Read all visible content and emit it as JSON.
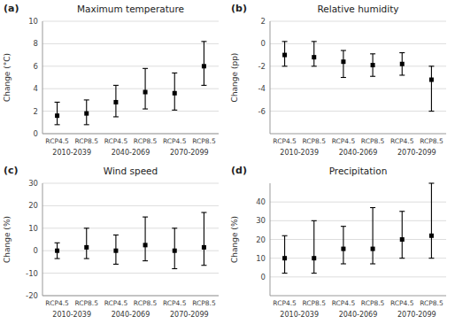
{
  "chart_data": [
    {
      "type": "errorbar",
      "label": "(a)",
      "title": "Maximum temperature",
      "ylabel": "Change (°C)",
      "categories": [
        "2010-2039",
        "2040-2069",
        "2070-2099"
      ],
      "ylim": [
        0,
        10
      ],
      "yticks": [
        0,
        2,
        4,
        6,
        8,
        10
      ],
      "grid": true,
      "series": [
        {
          "name": "RCP4.5",
          "color": "black",
          "marker": "square",
          "values": [
            1.6,
            2.8,
            3.6
          ],
          "errors_low": [
            0.8,
            1.3,
            1.5
          ],
          "errors_high": [
            1.2,
            1.5,
            1.8
          ]
        },
        {
          "name": "RCP8.5",
          "color": "black",
          "marker": "square",
          "values": [
            1.8,
            3.7,
            6.0
          ],
          "errors_low": [
            1.0,
            1.5,
            1.7
          ],
          "errors_high": [
            1.2,
            2.1,
            2.2
          ]
        }
      ]
    },
    {
      "type": "errorbar",
      "label": "(b)",
      "title": "Relative humidity",
      "ylabel": "Change (pp)",
      "categories": [
        "2010-2039",
        "2040-2069",
        "2070-2099"
      ],
      "ylim": [
        -8,
        2
      ],
      "yticks": [
        -6,
        -4,
        -2,
        0,
        2
      ],
      "grid": true,
      "series": [
        {
          "name": "RCP4.5",
          "color": "black",
          "marker": "square",
          "values": [
            -1.0,
            -1.6,
            -1.8
          ],
          "errors_low": [
            1.0,
            1.4,
            1.0
          ],
          "errors_high": [
            1.2,
            1.0,
            1.0
          ]
        },
        {
          "name": "RCP8.5",
          "color": "black",
          "marker": "square",
          "values": [
            -1.2,
            -1.9,
            -3.2
          ],
          "errors_low": [
            0.8,
            1.0,
            2.8
          ],
          "errors_high": [
            1.4,
            1.0,
            1.2
          ]
        }
      ]
    },
    {
      "type": "errorbar",
      "label": "(c)",
      "title": "Wind speed",
      "ylabel": "Change (%)",
      "categories": [
        "2010-2039",
        "2040-2069",
        "2070-2099"
      ],
      "ylim": [
        -20,
        30
      ],
      "yticks": [
        -20,
        -10,
        0,
        10,
        20,
        30
      ],
      "grid": true,
      "series": [
        {
          "name": "RCP4.5",
          "color": "black",
          "marker": "square",
          "values": [
            0.0,
            0.0,
            0.0
          ],
          "errors_low": [
            3.5,
            6.0,
            8.0
          ],
          "errors_high": [
            3.5,
            7.0,
            10.0
          ]
        },
        {
          "name": "RCP8.5",
          "color": "black",
          "marker": "square",
          "values": [
            1.5,
            2.5,
            1.5
          ],
          "errors_low": [
            5.0,
            7.0,
            8.0
          ],
          "errors_high": [
            8.5,
            12.5,
            15.5
          ]
        }
      ]
    },
    {
      "type": "errorbar",
      "label": "(d)",
      "title": "Precipitation",
      "ylabel": "Change (%)",
      "categories": [
        "2010-2039",
        "2040-2069",
        "2070-2099"
      ],
      "ylim": [
        -10,
        50
      ],
      "yticks": [
        0,
        10,
        20,
        30,
        40
      ],
      "grid": true,
      "series": [
        {
          "name": "RCP4.5",
          "color": "black",
          "marker": "square",
          "values": [
            10.0,
            15.0,
            20.0
          ],
          "errors_low": [
            8.0,
            8.0,
            10.0
          ],
          "errors_high": [
            12.0,
            12.0,
            15.0
          ]
        },
        {
          "name": "RCP8.5",
          "color": "black",
          "marker": "square",
          "values": [
            10.0,
            15.0,
            22.0
          ],
          "errors_low": [
            8.0,
            8.0,
            12.0
          ],
          "errors_high": [
            20.0,
            22.0,
            28.0
          ]
        }
      ]
    }
  ]
}
